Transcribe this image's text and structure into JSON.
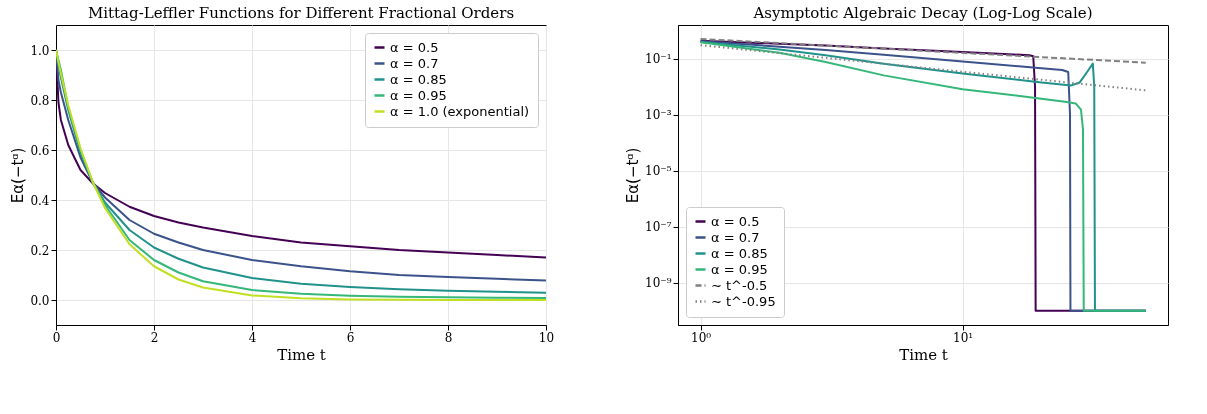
{
  "chart_data": [
    {
      "type": "line",
      "title": "Mittag-Leffler Functions for Different Fractional Orders",
      "xlabel": "Time t",
      "ylabel": "Eα(−tᵅ)",
      "x": [
        0,
        0.05,
        0.1,
        0.25,
        0.5,
        0.75,
        1,
        1.5,
        2,
        2.5,
        3,
        4,
        5,
        6,
        7,
        8,
        9,
        10
      ],
      "series": [
        {
          "name": "α = 0.5",
          "color": "#440154",
          "values": [
            1,
            0.79,
            0.72,
            0.62,
            0.52,
            0.467,
            0.428,
            0.373,
            0.336,
            0.31,
            0.29,
            0.256,
            0.23,
            0.215,
            0.2,
            0.19,
            0.18,
            0.17
          ]
        },
        {
          "name": "α = 0.7",
          "color": "#3b528b",
          "values": [
            1,
            0.88,
            0.83,
            0.72,
            0.57,
            0.47,
            0.41,
            0.32,
            0.265,
            0.23,
            0.2,
            0.16,
            0.135,
            0.115,
            0.1,
            0.092,
            0.085,
            0.078
          ]
        },
        {
          "name": "α = 0.85",
          "color": "#21918c",
          "values": [
            1,
            0.94,
            0.89,
            0.76,
            0.59,
            0.47,
            0.39,
            0.28,
            0.21,
            0.165,
            0.13,
            0.088,
            0.065,
            0.052,
            0.043,
            0.037,
            0.033,
            0.029
          ]
        },
        {
          "name": "α = 0.95",
          "color": "#35b779",
          "values": [
            1,
            0.96,
            0.92,
            0.77,
            0.6,
            0.47,
            0.38,
            0.24,
            0.16,
            0.11,
            0.075,
            0.04,
            0.025,
            0.017,
            0.013,
            0.011,
            0.009,
            0.008
          ]
        },
        {
          "name": "α = 1.0 (exponential)",
          "color": "#c2df23",
          "values": [
            1,
            0.951,
            0.905,
            0.779,
            0.607,
            0.472,
            0.368,
            0.223,
            0.135,
            0.082,
            0.05,
            0.018,
            0.007,
            0.002,
            0.001,
            0.0,
            0.0,
            0.0
          ]
        }
      ],
      "xlim": [
        0,
        10
      ],
      "xticks": [
        0,
        2,
        4,
        6,
        8,
        10
      ],
      "ylim": [
        -0.1,
        1.1
      ],
      "yticks": [
        {
          "value": 0,
          "label": "0.0"
        },
        {
          "value": 0.2,
          "label": "0.2"
        },
        {
          "value": 0.4,
          "label": "0.4"
        },
        {
          "value": 0.6,
          "label": "0.6"
        },
        {
          "value": 0.8,
          "label": "0.8"
        },
        {
          "value": 1,
          "label": "1.0"
        }
      ],
      "grid": true,
      "legend": "top right",
      "line_style": "solid"
    },
    {
      "type": "line",
      "title": "Asymptotic Algebraic Decay (Log-Log Scale)",
      "xlabel": "Time t",
      "ylabel": "Eα(−tᵅ)",
      "series": [
        {
          "name": "α = 0.5",
          "color": "#440154",
          "x": [
            1,
            2,
            3,
            5,
            10,
            15,
            18,
            18.6,
            18.9,
            19,
            50
          ],
          "values": [
            0.428,
            0.336,
            0.29,
            0.23,
            0.17,
            0.142,
            0.13,
            0.12,
            0.01,
            1e-10,
            1e-10
          ]
        },
        {
          "name": "α = 0.7",
          "color": "#3b528b",
          "x": [
            1,
            2,
            3,
            5,
            10,
            20,
            24,
            25.3,
            25.7,
            25.8,
            50
          ],
          "values": [
            0.41,
            0.265,
            0.2,
            0.135,
            0.078,
            0.045,
            0.039,
            0.033,
            0.001,
            1e-10,
            1e-10
          ]
        },
        {
          "name": "α = 0.85",
          "color": "#21918c",
          "x": [
            1,
            2,
            3,
            5,
            10,
            20,
            26,
            28,
            30,
            31.4,
            31.8,
            32,
            50
          ],
          "values": [
            0.39,
            0.21,
            0.13,
            0.065,
            0.029,
            0.014,
            0.011,
            0.014,
            0.035,
            0.066,
            0.01,
            1e-10,
            1e-10
          ]
        },
        {
          "name": "α = 0.95",
          "color": "#35b779",
          "x": [
            1,
            2,
            3,
            5,
            10,
            20,
            25,
            27,
            28.3,
            28.8,
            29,
            50
          ],
          "values": [
            0.38,
            0.16,
            0.075,
            0.025,
            0.008,
            0.0037,
            0.0028,
            0.0025,
            0.0015,
            0.0003,
            1e-10,
            1e-10
          ]
        },
        {
          "name": "∼ t^-0.5",
          "color": "#808080",
          "line_style": "dashed",
          "x": [
            1,
            50
          ],
          "values": [
            0.5,
            0.071
          ]
        },
        {
          "name": "∼ t^-0.95",
          "color": "#808080",
          "line_style": "dotted",
          "x": [
            1,
            50
          ],
          "values": [
            0.3,
            0.0073
          ]
        }
      ],
      "log": "xy",
      "xlim": [
        0.82,
        60.8
      ],
      "xticks": [
        {
          "value": 1,
          "label": "10⁰"
        },
        {
          "value": 10,
          "label": "10¹"
        }
      ],
      "ylim": [
        3.1e-11,
        1.57
      ],
      "yticks": [
        {
          "value": 1e-09,
          "label": "10⁻⁹"
        },
        {
          "value": 1e-07,
          "label": "10⁻⁷"
        },
        {
          "value": 1e-05,
          "label": "10⁻⁵"
        },
        {
          "value": 0.001,
          "label": "10⁻³"
        },
        {
          "value": 0.1,
          "label": "10⁻¹"
        }
      ],
      "grid": true,
      "legend": "bottom left",
      "line_style": "solid"
    }
  ]
}
